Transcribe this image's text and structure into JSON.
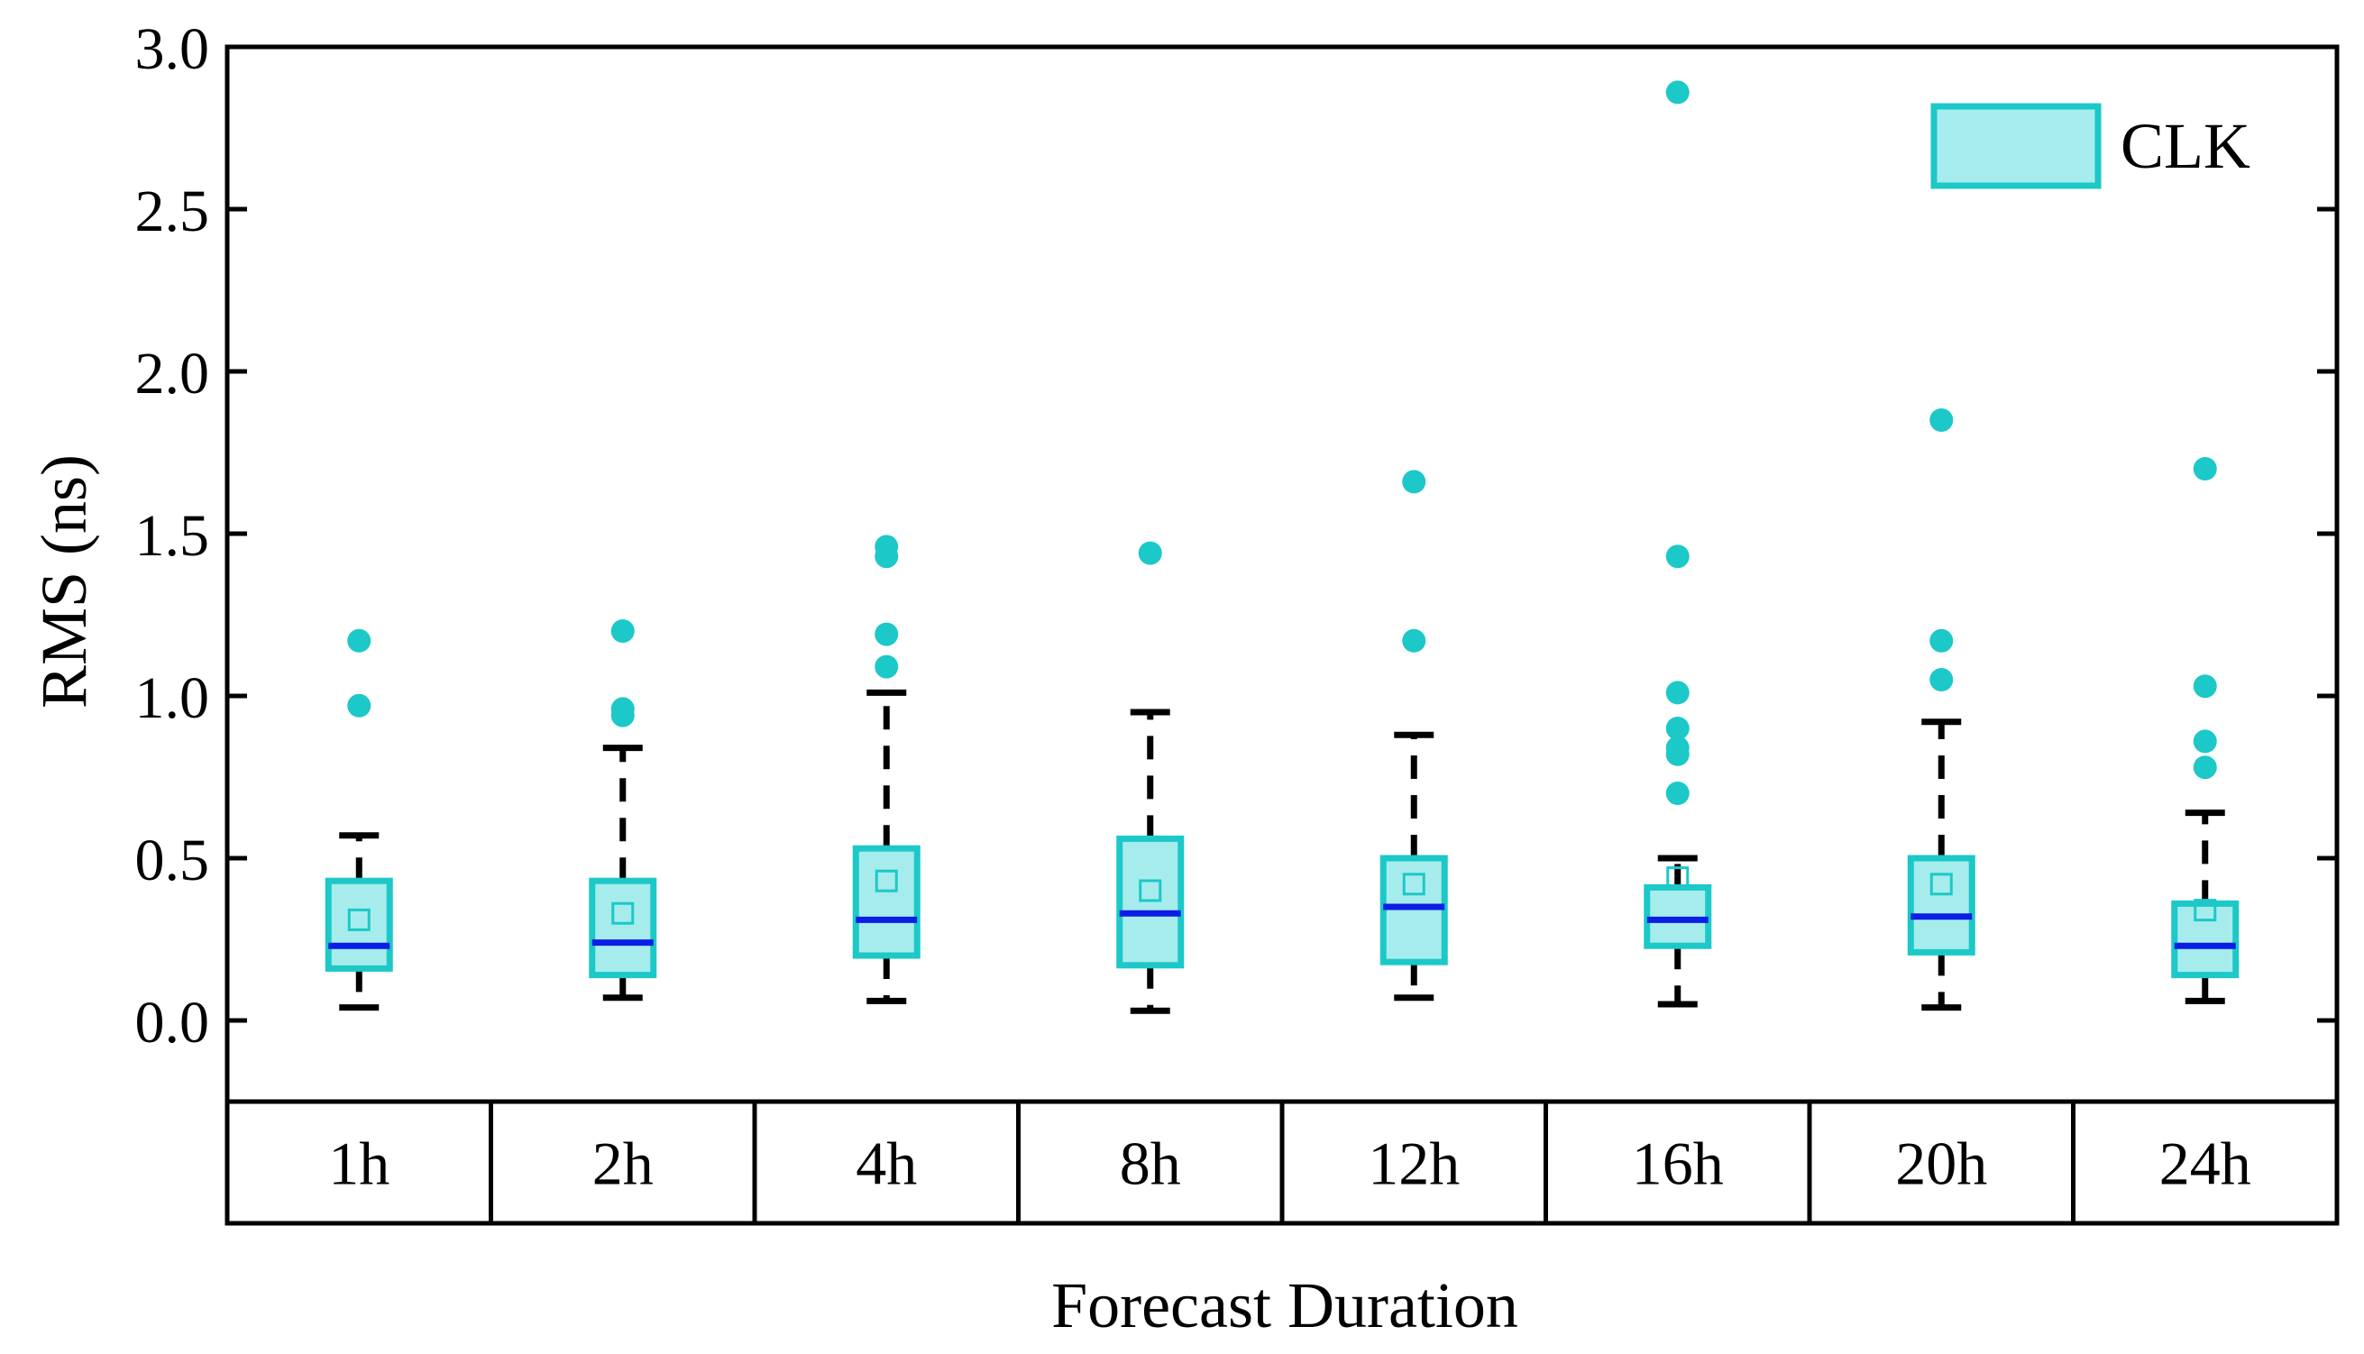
{
  "chart_data": {
    "type": "box",
    "title": "",
    "xlabel": "Forecast Duration",
    "ylabel": "RMS (ns)",
    "ylim": [
      -0.25,
      3.0
    ],
    "yticks": [
      "0.0",
      "0.5",
      "1.0",
      "1.5",
      "2.0",
      "2.5",
      "3.0"
    ],
    "ytick_values": [
      0.0,
      0.5,
      1.0,
      1.5,
      2.0,
      2.5,
      3.0
    ],
    "categories": [
      "1h",
      "2h",
      "4h",
      "8h",
      "12h",
      "16h",
      "20h",
      "24h"
    ],
    "legend": {
      "label": "CLK",
      "position": "top-right"
    },
    "colors": {
      "box_fill": "#a6ecec",
      "box_edge": "#1cc8c8",
      "median": "#0a1ee6",
      "whisker": "#000000",
      "outlier": "#1cc8c8",
      "mean": "#1cc8c8"
    },
    "series": [
      {
        "name": "CLK",
        "boxes": [
          {
            "category": "1h",
            "min": 0.04,
            "q1": 0.16,
            "median": 0.23,
            "q3": 0.43,
            "max": 0.57,
            "mean": 0.31,
            "outliers": [
              0.97,
              1.17
            ]
          },
          {
            "category": "2h",
            "min": 0.07,
            "q1": 0.14,
            "median": 0.24,
            "q3": 0.43,
            "max": 0.84,
            "mean": 0.33,
            "outliers": [
              0.94,
              0.96,
              1.2
            ]
          },
          {
            "category": "4h",
            "min": 0.06,
            "q1": 0.2,
            "median": 0.31,
            "q3": 0.53,
            "max": 1.01,
            "mean": 0.43,
            "outliers": [
              1.09,
              1.19,
              1.43,
              1.46
            ]
          },
          {
            "category": "8h",
            "min": 0.03,
            "q1": 0.17,
            "median": 0.33,
            "q3": 0.56,
            "max": 0.95,
            "mean": 0.4,
            "outliers": [
              1.44
            ]
          },
          {
            "category": "12h",
            "min": 0.07,
            "q1": 0.18,
            "median": 0.35,
            "q3": 0.5,
            "max": 0.88,
            "mean": 0.42,
            "outliers": [
              1.17,
              1.66
            ]
          },
          {
            "category": "16h",
            "min": 0.05,
            "q1": 0.23,
            "median": 0.31,
            "q3": 0.41,
            "max": 0.5,
            "mean": 0.44,
            "outliers": [
              0.7,
              0.82,
              0.84,
              0.9,
              1.01,
              1.43,
              2.86
            ]
          },
          {
            "category": "20h",
            "min": 0.04,
            "q1": 0.21,
            "median": 0.32,
            "q3": 0.5,
            "max": 0.92,
            "mean": 0.42,
            "outliers": [
              1.05,
              1.17,
              1.85
            ]
          },
          {
            "category": "24h",
            "min": 0.06,
            "q1": 0.14,
            "median": 0.23,
            "q3": 0.36,
            "max": 0.64,
            "mean": 0.34,
            "outliers": [
              0.78,
              0.86,
              1.03,
              1.7
            ]
          }
        ]
      }
    ]
  }
}
